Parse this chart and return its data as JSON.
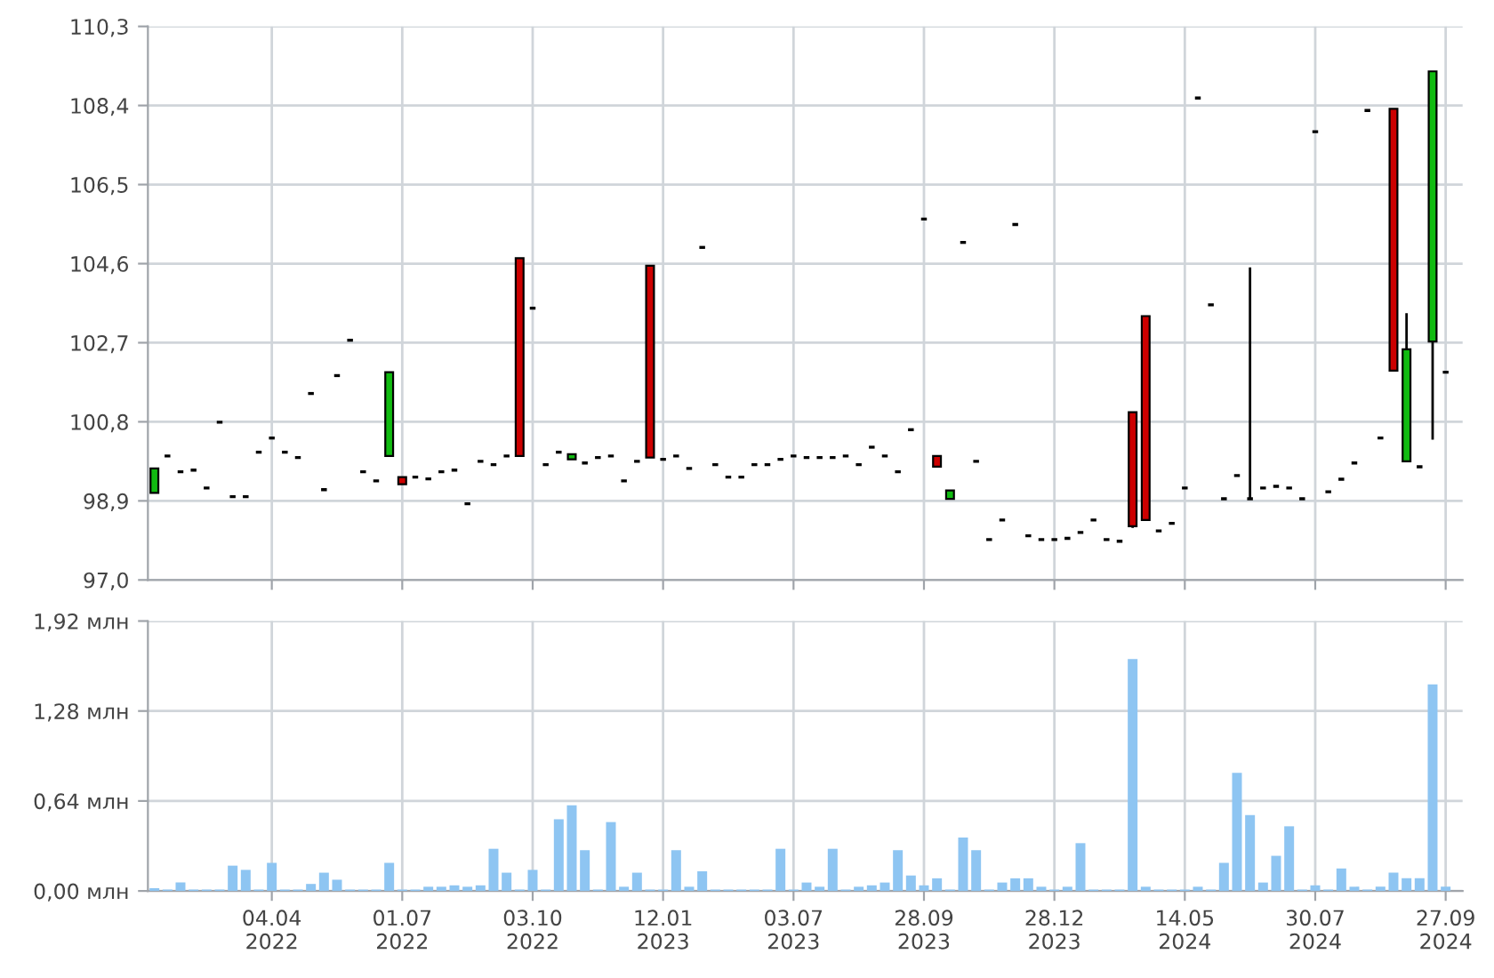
{
  "chart_data": [
    {
      "type": "candlestick",
      "tick_labels": "y",
      "grid": true,
      "categories": [
        null,
        null,
        null,
        null,
        null,
        null,
        null,
        null,
        null,
        null,
        null,
        null,
        null,
        null,
        null,
        null,
        null,
        null,
        null,
        null,
        null,
        null,
        null,
        null,
        null,
        null,
        null,
        null,
        null,
        null,
        null,
        null,
        null,
        null,
        null,
        null,
        null,
        null,
        null,
        null,
        null,
        null,
        null,
        null,
        null,
        null,
        null,
        null,
        null,
        null,
        null,
        null,
        null,
        null,
        null,
        null,
        null,
        null,
        null,
        null,
        null,
        null,
        null,
        null,
        null,
        null,
        null,
        null,
        null,
        null,
        null,
        null,
        null,
        null,
        null,
        null,
        null,
        null,
        null,
        null,
        null,
        null,
        null,
        null,
        null,
        null,
        null,
        null,
        null,
        null,
        null,
        null,
        null,
        null,
        null,
        null,
        null,
        null,
        null,
        null
      ],
      "ylim": [
        97.0,
        110.3
      ],
      "yticks": [
        {
          "value": 97.0,
          "label": "97,0"
        },
        {
          "value": 98.9,
          "label": "98,9"
        },
        {
          "value": 100.8,
          "label": "100,8"
        },
        {
          "value": 102.7,
          "label": "102,7"
        },
        {
          "value": 104.6,
          "label": "104,6"
        },
        {
          "value": 106.5,
          "label": "106,5"
        },
        {
          "value": 108.4,
          "label": "108,4"
        },
        {
          "value": 110.3,
          "label": "110,3"
        }
      ],
      "colors": [
        "#11bb11",
        "#000000",
        "#000000",
        "#000000",
        "#000000",
        "#000000",
        "#000000",
        "#000000",
        "#000000",
        "#000000",
        "#000000",
        "#000000",
        "#000000",
        "#000000",
        "#000000",
        "#000000",
        "#000000",
        "#000000",
        "#11bb11",
        "#cc0000",
        "#000000",
        "#000000",
        "#000000",
        "#000000",
        "#000000",
        "#000000",
        "#000000",
        "#000000",
        "#cc0000",
        "#000000",
        "#000000",
        "#000000",
        "#11bb11",
        "#000000",
        "#000000",
        "#000000",
        "#000000",
        "#000000",
        "#cc0000",
        "#000000",
        "#000000",
        "#000000",
        "#000000",
        "#000000",
        "#000000",
        "#000000",
        "#000000",
        "#000000",
        "#000000",
        "#000000",
        "#000000",
        "#000000",
        "#000000",
        "#000000",
        "#000000",
        "#000000",
        "#000000",
        "#000000",
        "#000000",
        "#000000",
        "#cc0000",
        "#11bb11",
        "#000000",
        "#000000",
        "#000000",
        "#000000",
        "#000000",
        "#000000",
        "#000000",
        "#000000",
        "#000000",
        "#000000",
        "#000000",
        "#000000",
        "#000000",
        "#cc0000",
        "#cc0000",
        "#000000",
        "#000000",
        "#000000",
        "#000000",
        "#000000",
        "#000000",
        "#000000",
        "#000000",
        "#000000",
        "#000000",
        "#000000",
        "#000000",
        "#000000",
        "#000000",
        "#000000",
        "#000000",
        "#000000",
        "#000000",
        "#cc0000",
        "#11bb11",
        "#000000",
        "#11bb11",
        "#000000"
      ],
      "ohlc": [
        [
          99.09,
          99.68,
          99.09,
          99.68
        ],
        [
          99.98,
          99.98,
          99.98,
          99.98
        ],
        [
          99.6,
          99.6,
          99.6,
          99.6
        ],
        [
          99.64,
          99.64,
          99.64,
          99.64
        ],
        [
          99.21,
          99.21,
          99.21,
          99.21
        ],
        [
          100.79,
          100.79,
          100.79,
          100.79
        ],
        [
          99.0,
          99.0,
          99.0,
          99.0
        ],
        [
          99.0,
          99.0,
          99.0,
          99.0
        ],
        [
          100.07,
          100.07,
          100.07,
          100.07
        ],
        [
          100.41,
          100.41,
          100.41,
          100.41
        ],
        [
          100.07,
          100.07,
          100.07,
          100.07
        ],
        [
          99.94,
          99.94,
          99.94,
          99.94
        ],
        [
          101.48,
          101.48,
          101.48,
          101.48
        ],
        [
          99.17,
          99.17,
          99.17,
          99.17
        ],
        [
          101.91,
          101.91,
          101.91,
          101.91
        ],
        [
          102.76,
          102.76,
          102.76,
          102.76
        ],
        [
          99.6,
          99.6,
          99.6,
          99.6
        ],
        [
          99.38,
          99.38,
          99.38,
          99.38
        ],
        [
          99.98,
          101.99,
          99.98,
          101.99
        ],
        [
          99.47,
          99.47,
          99.3,
          99.3
        ],
        [
          99.47,
          99.47,
          99.47,
          99.47
        ],
        [
          99.43,
          99.43,
          99.43,
          99.43
        ],
        [
          99.6,
          99.6,
          99.6,
          99.6
        ],
        [
          99.64,
          99.64,
          99.64,
          99.64
        ],
        [
          98.83,
          98.83,
          98.83,
          98.83
        ],
        [
          99.85,
          99.85,
          99.85,
          99.85
        ],
        [
          99.77,
          99.77,
          99.77,
          99.77
        ],
        [
          99.98,
          99.98,
          99.98,
          99.98
        ],
        [
          104.73,
          104.73,
          99.98,
          99.98
        ],
        [
          103.53,
          103.53,
          103.53,
          103.53
        ],
        [
          99.77,
          99.77,
          99.77,
          99.77
        ],
        [
          100.07,
          100.07,
          100.07,
          100.07
        ],
        [
          99.9,
          100.02,
          99.9,
          100.02
        ],
        [
          99.81,
          99.81,
          99.81,
          99.81
        ],
        [
          99.94,
          99.94,
          99.94,
          99.94
        ],
        [
          99.98,
          99.98,
          99.98,
          99.98
        ],
        [
          99.38,
          99.38,
          99.38,
          99.38
        ],
        [
          99.85,
          99.85,
          99.85,
          99.85
        ],
        [
          104.55,
          104.55,
          99.94,
          99.94
        ],
        [
          99.9,
          99.9,
          99.9,
          99.9
        ],
        [
          99.98,
          99.98,
          99.98,
          99.98
        ],
        [
          99.68,
          99.68,
          99.68,
          99.68
        ],
        [
          104.99,
          104.99,
          104.99,
          104.99
        ],
        [
          99.77,
          99.77,
          99.77,
          99.77
        ],
        [
          99.47,
          99.47,
          99.47,
          99.47
        ],
        [
          99.47,
          99.47,
          99.47,
          99.47
        ],
        [
          99.77,
          99.77,
          99.77,
          99.77
        ],
        [
          99.77,
          99.77,
          99.77,
          99.77
        ],
        [
          99.9,
          99.9,
          99.9,
          99.9
        ],
        [
          99.98,
          99.98,
          99.98,
          99.98
        ],
        [
          99.94,
          99.94,
          99.94,
          99.94
        ],
        [
          99.94,
          99.94,
          99.94,
          99.94
        ],
        [
          99.94,
          99.94,
          99.94,
          99.94
        ],
        [
          99.98,
          99.98,
          99.98,
          99.98
        ],
        [
          99.77,
          99.77,
          99.77,
          99.77
        ],
        [
          100.19,
          100.19,
          100.19,
          100.19
        ],
        [
          99.98,
          99.98,
          99.98,
          99.98
        ],
        [
          99.6,
          99.6,
          99.6,
          99.6
        ],
        [
          100.61,
          100.61,
          100.61,
          100.61
        ],
        [
          105.67,
          105.67,
          105.67,
          105.67
        ],
        [
          99.98,
          99.98,
          99.72,
          99.72
        ],
        [
          98.95,
          99.15,
          98.95,
          99.15
        ],
        [
          105.11,
          105.11,
          105.11,
          105.11
        ],
        [
          99.85,
          99.85,
          99.85,
          99.85
        ],
        [
          97.97,
          97.97,
          97.97,
          97.97
        ],
        [
          98.44,
          98.44,
          98.44,
          98.44
        ],
        [
          105.54,
          105.54,
          105.54,
          105.54
        ],
        [
          98.06,
          98.06,
          98.06,
          98.06
        ],
        [
          97.97,
          97.97,
          97.97,
          97.97
        ],
        [
          97.97,
          97.97,
          97.97,
          97.97
        ],
        [
          98.0,
          98.0,
          98.0,
          98.0
        ],
        [
          98.14,
          98.14,
          98.14,
          98.14
        ],
        [
          98.44,
          98.44,
          98.44,
          98.44
        ],
        [
          97.97,
          97.97,
          97.97,
          97.97
        ],
        [
          97.93,
          97.93,
          97.93,
          97.93
        ],
        [
          101.03,
          101.03,
          98.25,
          98.29
        ],
        [
          103.34,
          103.34,
          98.44,
          98.44
        ],
        [
          98.18,
          98.18,
          98.18,
          98.18
        ],
        [
          98.36,
          98.36,
          98.36,
          98.36
        ],
        [
          99.21,
          99.21,
          99.21,
          99.21
        ],
        [
          108.58,
          108.58,
          108.58,
          108.58
        ],
        [
          103.61,
          103.61,
          103.61,
          103.61
        ],
        [
          98.95,
          98.95,
          98.95,
          98.95
        ],
        [
          99.51,
          99.51,
          99.51,
          99.51
        ],
        [
          98.95,
          104.51,
          98.95,
          98.95
        ],
        [
          99.21,
          99.21,
          99.21,
          99.21
        ],
        [
          99.25,
          99.25,
          99.25,
          99.25
        ],
        [
          99.21,
          99.21,
          99.21,
          99.21
        ],
        [
          98.95,
          98.95,
          98.95,
          98.95
        ],
        [
          107.77,
          107.77,
          107.77,
          107.77
        ],
        [
          99.12,
          99.12,
          99.12,
          99.12
        ],
        [
          99.42,
          99.42,
          99.42,
          99.42
        ],
        [
          99.81,
          99.81,
          99.81,
          99.81
        ],
        [
          108.28,
          108.28,
          108.28,
          108.28
        ],
        [
          100.41,
          100.41,
          100.41,
          100.41
        ],
        [
          108.32,
          108.32,
          102.03,
          102.03
        ],
        [
          99.85,
          103.41,
          99.85,
          102.54
        ],
        [
          99.72,
          99.72,
          99.72,
          99.72
        ],
        [
          102.73,
          109.22,
          100.37,
          109.22
        ],
        [
          101.99,
          101.99,
          101.99,
          101.99
        ]
      ]
    },
    {
      "type": "bar",
      "grid": true,
      "color": "#8ec5f2",
      "categories": [
        null,
        null,
        null,
        null,
        null,
        null,
        null,
        null,
        null,
        "04.04\n2022",
        null,
        null,
        null,
        null,
        null,
        null,
        null,
        null,
        null,
        "01.07\n2022",
        null,
        null,
        null,
        null,
        null,
        null,
        null,
        null,
        null,
        "03.10\n2022",
        null,
        null,
        null,
        null,
        null,
        null,
        null,
        null,
        null,
        "12.01\n2023",
        null,
        null,
        null,
        null,
        null,
        null,
        null,
        null,
        null,
        "03.07\n2023",
        null,
        null,
        null,
        null,
        null,
        null,
        null,
        null,
        null,
        "28.09\n2023",
        null,
        null,
        null,
        null,
        null,
        null,
        null,
        null,
        null,
        "28.12\n2023",
        null,
        null,
        null,
        null,
        null,
        null,
        null,
        null,
        null,
        "14.05\n2024",
        null,
        null,
        null,
        null,
        null,
        null,
        null,
        null,
        null,
        "30.07\n2024",
        null,
        null,
        null,
        null,
        null,
        null,
        null,
        null,
        null,
        "27.09\n2024"
      ],
      "ylim": [
        0,
        1.92
      ],
      "yticks": [
        {
          "value": 0,
          "label": "0,00 млн"
        },
        {
          "value": 0.64,
          "label": "0,64 млн"
        },
        {
          "value": 1.28,
          "label": "1,28 млн"
        },
        {
          "value": 1.92,
          "label": "1,92 млн"
        }
      ],
      "values": [
        0.02,
        0.01,
        0.06,
        0.01,
        0.01,
        0.01,
        0.18,
        0.15,
        0.01,
        0.2,
        0.01,
        0.01,
        0.05,
        0.13,
        0.08,
        0.01,
        0.01,
        0.01,
        0.2,
        0.01,
        0.01,
        0.03,
        0.03,
        0.04,
        0.03,
        0.04,
        0.3,
        0.13,
        0.01,
        0.15,
        0.01,
        0.51,
        0.61,
        0.29,
        0.01,
        0.49,
        0.03,
        0.13,
        0.01,
        0.01,
        0.29,
        0.03,
        0.14,
        0.01,
        0.01,
        0.01,
        0.01,
        0.01,
        0.3,
        0.01,
        0.06,
        0.03,
        0.3,
        0.01,
        0.03,
        0.04,
        0.06,
        0.29,
        0.11,
        0.04,
        0.09,
        0.01,
        0.38,
        0.29,
        0.01,
        0.06,
        0.09,
        0.09,
        0.03,
        0.01,
        0.03,
        0.34,
        0.01,
        0.01,
        0.01,
        1.65,
        0.03,
        0.01,
        0.01,
        0.01,
        0.03,
        0.01,
        0.2,
        0.84,
        0.54,
        0.06,
        0.25,
        0.46,
        0.01,
        0.04,
        0.01,
        0.16,
        0.03,
        0.01,
        0.03,
        0.13,
        0.09,
        0.09,
        1.47,
        0.03
      ]
    }
  ]
}
